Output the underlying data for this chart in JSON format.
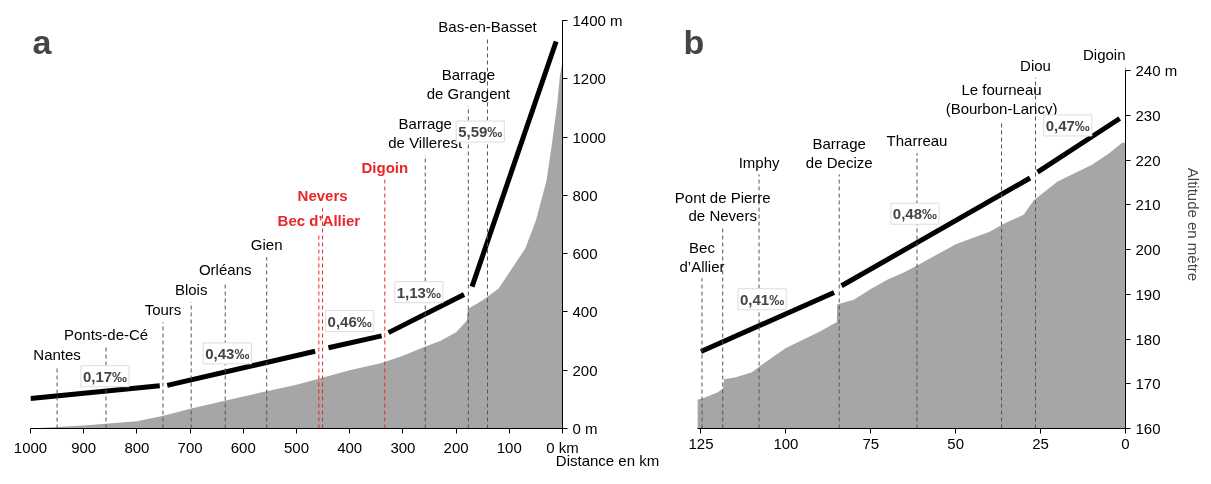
{
  "chart_data": [
    {
      "type": "area",
      "title": "a",
      "xlabel": "Distance en km",
      "xlim": [
        1000,
        0
      ],
      "ylim": [
        0,
        1400
      ],
      "grid": false,
      "xticks": [
        1000,
        900,
        800,
        700,
        600,
        500,
        400,
        300,
        200,
        100,
        {
          "value": 0,
          "label": "0 km"
        }
      ],
      "yticks": [
        {
          "value": 0,
          "label": "0 m"
        },
        200,
        400,
        600,
        800,
        1000,
        1200,
        {
          "value": 1400,
          "label": "1400 m"
        }
      ],
      "series": [
        {
          "color": "#a6a6a6",
          "x": [
            1000,
            900,
            800,
            750,
            700,
            600,
            500,
            460,
            400,
            340,
            300,
            260,
            230,
            200,
            180,
            178,
            150,
            120,
            100,
            70,
            50,
            30,
            20,
            10,
            5,
            0
          ],
          "values": [
            0,
            10,
            25,
            44,
            68,
            110,
            150,
            170,
            200,
            225,
            250,
            280,
            300,
            330,
            370,
            410,
            440,
            480,
            535,
            618,
            714,
            851,
            975,
            1112,
            1208,
            1263
          ]
        },
        {
          "type": "line",
          "color": "#000000",
          "x": [
            1000,
            757
          ],
          "values": [
            103,
            147
          ]
        },
        {
          "type": "line",
          "color": "#000000",
          "x": [
            743,
            465
          ],
          "values": [
            148,
            265
          ]
        },
        {
          "type": "line",
          "color": "#000000",
          "x": [
            440,
            340
          ],
          "values": [
            277,
            318
          ]
        },
        {
          "type": "line",
          "color": "#000000",
          "x": [
            327,
            185
          ],
          "values": [
            329,
            460
          ]
        },
        {
          "type": "line",
          "color": "#000000",
          "x": [
            170,
            12
          ],
          "values": [
            487,
            1328
          ]
        }
      ],
      "annotations": [
        {
          "text": "0,17‰",
          "x": 860,
          "y": 128
        },
        {
          "text": "0,43‰",
          "x": 630,
          "y": 196
        },
        {
          "text": "0,46‰",
          "x": 400,
          "y": 293
        },
        {
          "text": "1,13‰",
          "x": 270,
          "y": 382
        },
        {
          "text": "5,59‰",
          "x": 70,
          "y": 1019
        }
      ],
      "ref_lines": [
        {
          "axis": "x",
          "value": 950,
          "label": "Nantes",
          "line_style": "dashed"
        },
        {
          "axis": "x",
          "value": 858,
          "label": "Ponts-de-Cé",
          "line_style": "dashed"
        },
        {
          "axis": "x",
          "value": 751,
          "label": "Tours",
          "line_style": "dashed"
        },
        {
          "axis": "x",
          "value": 698,
          "label": "Blois",
          "line_style": "dashed"
        },
        {
          "axis": "x",
          "value": 634,
          "label": "Orléans",
          "line_style": "dashed"
        },
        {
          "axis": "x",
          "value": 556,
          "label": "Gien",
          "line_style": "dashed"
        },
        {
          "axis": "x",
          "value": 458,
          "label": "Bec d’Allier",
          "color": "#e8262b",
          "line_style": "dashed"
        },
        {
          "axis": "x",
          "value": 451,
          "label": "Nevers",
          "color": "#e8262b",
          "line_style": "dashed"
        },
        {
          "axis": "x",
          "value": 334,
          "label": "Digoin",
          "color": "#e8262b",
          "line_style": "dashed"
        },
        {
          "axis": "x",
          "value": 258,
          "label": "Barrage\nde Villerest",
          "line_style": "dashed"
        },
        {
          "axis": "x",
          "value": 177,
          "label": "Barrage\nde Grangent",
          "line_style": "dashed"
        },
        {
          "axis": "x",
          "value": 141,
          "label": "Bas-en-Basset",
          "line_style": "dashed"
        }
      ]
    },
    {
      "type": "area",
      "title": "b",
      "ylabel": "Altitude en mètre",
      "xlim": [
        126,
        0
      ],
      "ylim": [
        160,
        240
      ],
      "grid": false,
      "xticks": [
        125,
        100,
        75,
        50,
        25,
        0
      ],
      "yticks": [
        160,
        170,
        180,
        190,
        200,
        210,
        220,
        230,
        {
          "value": 240,
          "label": "240 m"
        }
      ],
      "series": [
        {
          "color": "#a6a6a6",
          "x": [
            126,
            124,
            120,
            118.5,
            118.2,
            115,
            110,
            107,
            100,
            90,
            85,
            84.9,
            80,
            75,
            70,
            65,
            60,
            50,
            40,
            36,
            30,
            27,
            20,
            10,
            5,
            1,
            0
          ],
          "values": [
            166.4,
            166.9,
            168.1,
            169,
            171,
            171.4,
            172.6,
            174.3,
            178,
            181.7,
            183.8,
            187.7,
            188.8,
            191.2,
            193.3,
            195,
            197,
            201.2,
            204,
            205.7,
            207.8,
            211,
            215.2,
            218.9,
            221.4,
            223.9,
            223.9
          ]
        },
        {
          "type": "line",
          "color": "#000000",
          "x": [
            125,
            85.8
          ],
          "values": [
            177.2,
            190.4
          ]
        },
        {
          "type": "line",
          "color": "#000000",
          "x": [
            83.6,
            28.1
          ],
          "values": [
            191.9,
            216
          ]
        },
        {
          "type": "line",
          "color": "#000000",
          "x": [
            25.9,
            1.7
          ],
          "values": [
            217.3,
            229.3
          ]
        }
      ],
      "annotations": [
        {
          "text": "0,41‰",
          "x": 107,
          "y": 183.3
        },
        {
          "text": "0,48‰",
          "x": 62,
          "y": 201.3
        },
        {
          "text": "0,47‰",
          "x": 17,
          "y": 221.7
        }
      ],
      "ref_lines": [
        {
          "axis": "x",
          "value": 124.7,
          "label": "Bec\nd’Allier",
          "line_style": "dashed"
        },
        {
          "axis": "x",
          "value": 118.6,
          "label": "Pont de Pierre\nde Nevers",
          "line_style": "dashed"
        },
        {
          "axis": "x",
          "value": 107.9,
          "label": "Imphy",
          "line_style": "dashed"
        },
        {
          "axis": "x",
          "value": 84.3,
          "label": "Barrage\nde Decize",
          "line_style": "dashed"
        },
        {
          "axis": "x",
          "value": 61.4,
          "label": "Tharreau",
          "line_style": "dashed"
        },
        {
          "axis": "x",
          "value": 36.5,
          "label": "Le fourneau\n(Bourbon-Lancy)",
          "line_style": "dashed"
        },
        {
          "axis": "x",
          "value": 26.5,
          "label": "Diou",
          "line_style": "dashed"
        },
        {
          "axis": "x",
          "value": 0,
          "label": "Digoin",
          "line_style": "dashed"
        }
      ]
    }
  ]
}
